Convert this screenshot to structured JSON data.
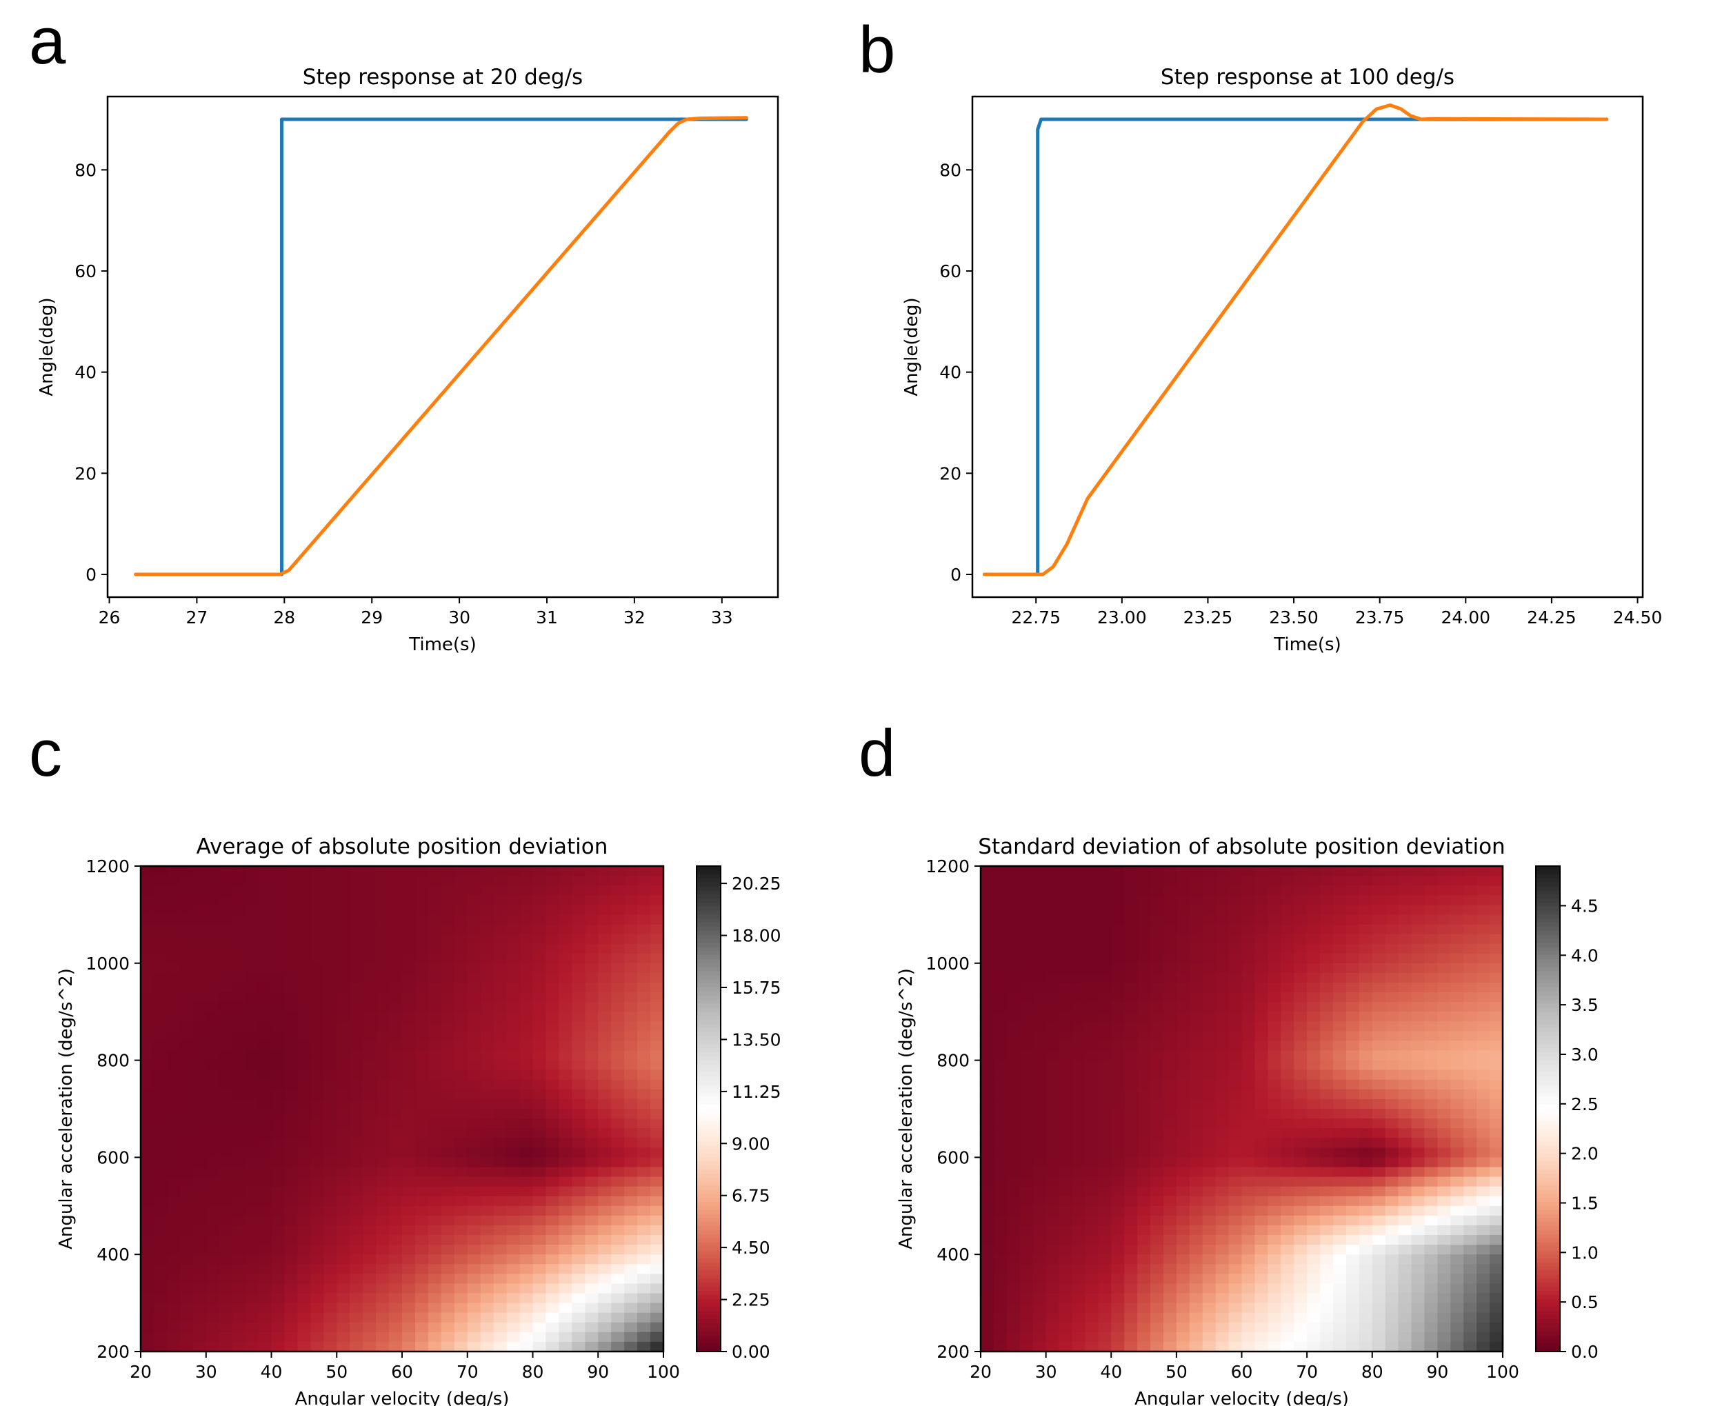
{
  "panels": [
    {
      "letter": "a"
    },
    {
      "letter": "b"
    },
    {
      "letter": "c"
    },
    {
      "letter": "d"
    }
  ],
  "chart_data": [
    {
      "type": "line",
      "title": "Step response at 20 deg/s",
      "xlabel": "Time(s)",
      "ylabel": "Angle(deg)",
      "xlim": [
        25.98,
        33.64
      ],
      "ylim": [
        -4.5,
        94.5
      ],
      "xticks": [
        26,
        27,
        28,
        29,
        30,
        31,
        32,
        33
      ],
      "xtick_labels": [
        "26",
        "27",
        "28",
        "29",
        "30",
        "31",
        "32",
        "33"
      ],
      "yticks": [
        0,
        20,
        40,
        60,
        80
      ],
      "ytick_labels": [
        "0",
        "20",
        "40",
        "60",
        "80"
      ],
      "series": [
        {
          "color": "#1f77b4",
          "x": [
            27.97,
            27.97,
            33.28
          ],
          "y": [
            0,
            90,
            90
          ]
        },
        {
          "color": "#ff7f0e",
          "x": [
            26.3,
            27.95,
            28.05,
            32.4,
            32.5,
            32.6,
            32.75,
            33.28
          ],
          "y": [
            0,
            0,
            0.8,
            87.5,
            89.2,
            90.0,
            90.2,
            90.3
          ]
        }
      ]
    },
    {
      "type": "line",
      "title": "Step response at 100 deg/s",
      "xlabel": "Time(s)",
      "ylabel": "Angle(deg)",
      "xlim": [
        22.565,
        24.515
      ],
      "ylim": [
        -4.5,
        94.5
      ],
      "xticks": [
        22.75,
        23.0,
        23.25,
        23.5,
        23.75,
        24.0,
        24.25,
        24.5
      ],
      "xtick_labels": [
        "22.75",
        "23.00",
        "23.25",
        "23.50",
        "23.75",
        "24.00",
        "24.25",
        "24.50"
      ],
      "yticks": [
        0,
        20,
        40,
        60,
        80
      ],
      "ytick_labels": [
        "0",
        "20",
        "40",
        "60",
        "80"
      ],
      "series": [
        {
          "color": "#1f77b4",
          "x": [
            22.6,
            22.755,
            22.755,
            22.765,
            24.41
          ],
          "y": [
            0,
            0,
            88,
            90,
            90
          ]
        },
        {
          "color": "#ff7f0e",
          "x": [
            22.6,
            22.77,
            22.8,
            22.84,
            22.9,
            23.7,
            23.74,
            23.78,
            23.81,
            23.84,
            23.87,
            23.9,
            24.41
          ],
          "y": [
            0,
            0,
            1.5,
            6,
            15,
            89.5,
            92,
            92.8,
            92.1,
            90.7,
            90.0,
            90.1,
            90.0
          ]
        }
      ]
    },
    {
      "type": "heatmap",
      "title": "Average of absolute position deviation",
      "xlabel": "Angular velocity (deg/s)",
      "ylabel": "Angular acceleration (deg/s^2)",
      "xlim": [
        20,
        100
      ],
      "ylim": [
        200,
        1200
      ],
      "xticks": [
        20,
        30,
        40,
        50,
        60,
        70,
        80,
        90,
        100
      ],
      "xtick_labels": [
        "20",
        "30",
        "40",
        "50",
        "60",
        "70",
        "80",
        "90",
        "100"
      ],
      "yticks": [
        200,
        400,
        600,
        800,
        1000,
        1200
      ],
      "ytick_labels": [
        "200",
        "400",
        "600",
        "800",
        "1000",
        "1200"
      ],
      "colormap": "RdGy",
      "colorbar_range": [
        0,
        21.0
      ],
      "colorbar_ticks": [
        0,
        2.25,
        4.5,
        6.75,
        9.0,
        11.25,
        13.5,
        15.75,
        18.0,
        20.25
      ],
      "colorbar_tick_labels": [
        "0.00",
        "2.25",
        "4.50",
        "6.75",
        "9.00",
        "11.25",
        "13.50",
        "15.75",
        "18.00",
        "20.25"
      ],
      "grid_x": [
        20,
        40,
        60,
        80,
        100
      ],
      "grid_y": [
        200,
        400,
        600,
        800,
        1000,
        1200
      ],
      "values": [
        [
          0.6,
          1.8,
          5.0,
          11.5,
          21.0
        ],
        [
          0.5,
          0.8,
          2.6,
          5.2,
          9.5
        ],
        [
          0.4,
          0.5,
          1.2,
          0.3,
          2.5
        ],
        [
          0.5,
          0.3,
          1.0,
          2.0,
          5.0
        ],
        [
          0.6,
          0.5,
          0.7,
          1.6,
          3.5
        ],
        [
          0.3,
          0.5,
          0.7,
          0.9,
          1.5
        ]
      ]
    },
    {
      "type": "heatmap",
      "title": "Standard deviation of absolute position deviation",
      "xlabel": "Angular velocity (deg/s)",
      "ylabel": "Angular acceleration (deg/s^2)",
      "xlim": [
        20,
        100
      ],
      "ylim": [
        200,
        1200
      ],
      "xticks": [
        20,
        30,
        40,
        50,
        60,
        70,
        80,
        90,
        100
      ],
      "xtick_labels": [
        "20",
        "30",
        "40",
        "50",
        "60",
        "70",
        "80",
        "90",
        "100"
      ],
      "yticks": [
        200,
        400,
        600,
        800,
        1000,
        1200
      ],
      "ytick_labels": [
        "200",
        "400",
        "600",
        "800",
        "1000",
        "1200"
      ],
      "colormap": "RdGy",
      "colorbar_range": [
        0,
        4.9
      ],
      "colorbar_ticks": [
        0,
        0.5,
        1.0,
        1.5,
        2.0,
        2.5,
        3.0,
        3.5,
        4.0,
        4.5
      ],
      "colorbar_tick_labels": [
        "0.0",
        "0.5",
        "1.0",
        "1.5",
        "2.0",
        "2.5",
        "3.0",
        "3.5",
        "4.0",
        "4.5"
      ],
      "grid_x": [
        20,
        40,
        60,
        80,
        100
      ],
      "grid_y": [
        200,
        400,
        600,
        800,
        1000,
        1200
      ],
      "values": [
        [
          0.1,
          0.7,
          2.2,
          3.0,
          4.8
        ],
        [
          0.1,
          0.4,
          1.3,
          2.8,
          4.2
        ],
        [
          0.1,
          0.2,
          0.5,
          0.1,
          1.2
        ],
        [
          0.1,
          0.2,
          0.4,
          1.4,
          1.6
        ],
        [
          0.1,
          0.1,
          0.3,
          0.7,
          1.0
        ],
        [
          0.1,
          0.1,
          0.2,
          0.3,
          0.4
        ]
      ]
    }
  ]
}
